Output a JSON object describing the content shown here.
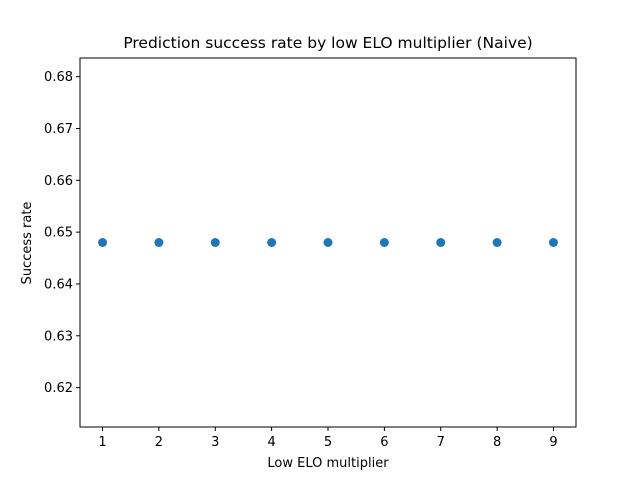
{
  "chart_data": {
    "type": "scatter",
    "title": "Prediction success rate by low ELO multiplier (Naive)",
    "xlabel": "Low ELO multiplier",
    "ylabel": "Success rate",
    "x": [
      1,
      2,
      3,
      4,
      5,
      6,
      7,
      8,
      9
    ],
    "y": [
      0.648,
      0.648,
      0.648,
      0.648,
      0.648,
      0.648,
      0.648,
      0.648,
      0.648
    ],
    "xlim": [
      0.6,
      9.4
    ],
    "ylim": [
      0.6124,
      0.6836
    ],
    "xticks": [
      1,
      2,
      3,
      4,
      5,
      6,
      7,
      8,
      9
    ],
    "yticks": [
      0.62,
      0.63,
      0.64,
      0.65,
      0.66,
      0.67,
      0.68
    ],
    "ytick_labels": [
      "0.62",
      "0.63",
      "0.64",
      "0.65",
      "0.66",
      "0.67",
      "0.68"
    ],
    "grid": false,
    "legend": "none",
    "marker_color": "#1f77b4"
  }
}
